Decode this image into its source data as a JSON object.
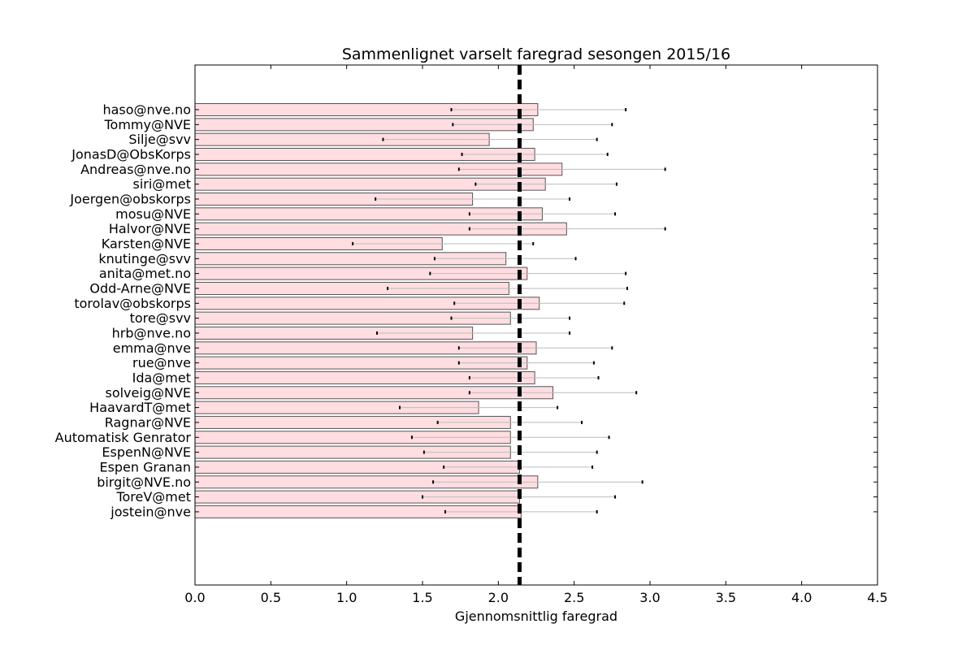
{
  "chart_data": {
    "type": "bar",
    "orientation": "horizontal",
    "title": "Sammenlignet varselt faregrad sesongen 2015/16",
    "xlabel": "Gjennomsnittlig faregrad",
    "ylabel": "",
    "xlim": [
      0.0,
      4.5
    ],
    "xticks": [
      "0.0",
      "0.5",
      "1.0",
      "1.5",
      "2.0",
      "2.5",
      "3.0",
      "3.5",
      "4.0",
      "4.5"
    ],
    "grid": false,
    "reference_line": {
      "value": 2.14,
      "style": "dashed",
      "color": "#000000"
    },
    "bar_color": "#ffdde1",
    "bar_edge_color": "#555555",
    "error_color": "#bbbbbb",
    "categories": [
      "haso@nve.no",
      "Tommy@NVE",
      "Silje@svv",
      "JonasD@ObsKorps",
      "Andreas@nve.no",
      "siri@met",
      "Joergen@obskorps",
      "mosu@NVE",
      "Halvor@NVE",
      "Karsten@NVE",
      "knutinge@svv",
      "anita@met.no",
      "Odd-Arne@NVE",
      "torolav@obskorps",
      "tore@svv",
      "hrb@nve.no",
      "emma@nve",
      "rue@nve",
      "Ida@met",
      "solveig@NVE",
      "HaavardT@met",
      "Ragnar@NVE",
      "Automatisk Genrator",
      "EspenN@NVE",
      "Espen Granan",
      "birgit@NVE.no",
      "ToreV@met",
      "jostein@nve"
    ],
    "values": [
      2.26,
      2.23,
      1.94,
      2.24,
      2.42,
      2.31,
      1.83,
      2.29,
      2.45,
      1.63,
      2.05,
      2.19,
      2.07,
      2.27,
      2.08,
      1.83,
      2.25,
      2.19,
      2.24,
      2.36,
      1.87,
      2.08,
      2.08,
      2.08,
      2.14,
      2.26,
      2.14,
      2.15
    ],
    "error_low": [
      1.69,
      1.7,
      1.24,
      1.76,
      1.74,
      1.85,
      1.19,
      1.81,
      1.81,
      1.04,
      1.58,
      1.55,
      1.27,
      1.71,
      1.69,
      1.2,
      1.74,
      1.74,
      1.81,
      1.81,
      1.35,
      1.6,
      1.43,
      1.51,
      1.64,
      1.57,
      1.5,
      1.65
    ],
    "error_high": [
      2.84,
      2.75,
      2.65,
      2.72,
      3.1,
      2.78,
      2.47,
      2.77,
      3.1,
      2.23,
      2.51,
      2.84,
      2.85,
      2.83,
      2.47,
      2.47,
      2.75,
      2.63,
      2.66,
      2.91,
      2.39,
      2.55,
      2.73,
      2.65,
      2.62,
      2.95,
      2.77,
      2.65
    ]
  }
}
